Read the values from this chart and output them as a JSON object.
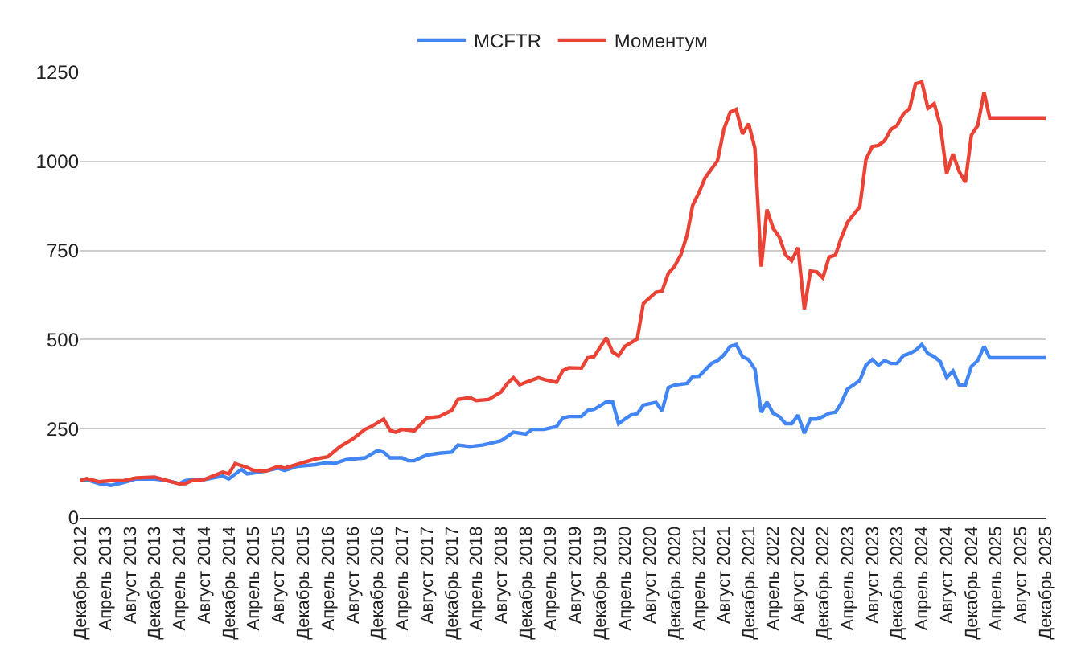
{
  "chart_data": {
    "type": "line",
    "xlim": [
      "2012-12",
      "2025-12"
    ],
    "xticks": [
      {
        "value": "2012-12",
        "label": "Декабрь 2012"
      },
      {
        "value": "2013-04",
        "label": "Апрель 2013"
      },
      {
        "value": "2013-08",
        "label": "Август 2013"
      },
      {
        "value": "2013-12",
        "label": "Декабрь 2013"
      },
      {
        "value": "2014-04",
        "label": "Апрель 2014"
      },
      {
        "value": "2014-08",
        "label": "Август 2014"
      },
      {
        "value": "2014-12",
        "label": "Декабрь 2014"
      },
      {
        "value": "2015-04",
        "label": "Апрель 2015"
      },
      {
        "value": "2015-08",
        "label": "Август 2015"
      },
      {
        "value": "2015-12",
        "label": "Декабрь 2015"
      },
      {
        "value": "2016-04",
        "label": "Апрель 2016"
      },
      {
        "value": "2016-08",
        "label": "Август 2016"
      },
      {
        "value": "2016-12",
        "label": "Декабрь 2016"
      },
      {
        "value": "2017-04",
        "label": "Апрель 2017"
      },
      {
        "value": "2017-08",
        "label": "Август 2017"
      },
      {
        "value": "2017-12",
        "label": "Декабрь 2017"
      },
      {
        "value": "2018-04",
        "label": "Апрель 2018"
      },
      {
        "value": "2018-08",
        "label": "Август 2018"
      },
      {
        "value": "2018-12",
        "label": "Декабрь 2018"
      },
      {
        "value": "2019-04",
        "label": "Апрель 2019"
      },
      {
        "value": "2019-08",
        "label": "Август 2019"
      },
      {
        "value": "2019-12",
        "label": "Декабрь 2019"
      },
      {
        "value": "2020-04",
        "label": "Апрель 2020"
      },
      {
        "value": "2020-08",
        "label": "Август 2020"
      },
      {
        "value": "2020-12",
        "label": "Декабрь 2020"
      },
      {
        "value": "2021-04",
        "label": "Апрель 2021"
      },
      {
        "value": "2021-08",
        "label": "Август 2021"
      },
      {
        "value": "2021-12",
        "label": "Декабрь 2021"
      },
      {
        "value": "2022-04",
        "label": "Апрель 2022"
      },
      {
        "value": "2022-08",
        "label": "Август 2022"
      },
      {
        "value": "2022-12",
        "label": "Декабрь 2022"
      },
      {
        "value": "2023-04",
        "label": "Апрель 2023"
      },
      {
        "value": "2023-08",
        "label": "Август 2023"
      },
      {
        "value": "2023-12",
        "label": "Декабрь 2023"
      },
      {
        "value": "2024-04",
        "label": "Апрель 2024"
      },
      {
        "value": "2024-08",
        "label": "Август 2024"
      },
      {
        "value": "2024-12",
        "label": "Декабрь 2024"
      },
      {
        "value": "2025-04",
        "label": "Апрель 2025"
      },
      {
        "value": "2025-08",
        "label": "Август 2025"
      },
      {
        "value": "2025-12",
        "label": "Декабрь 2025"
      }
    ],
    "ylim": [
      0,
      1250
    ],
    "yticks": [
      0,
      250,
      500,
      750,
      1000,
      1250
    ],
    "grid": "y",
    "legend": "top",
    "marker": "none",
    "line_style": "solid",
    "series": [
      {
        "name": "MCFTR",
        "color": "#4285f4",
        "x": [
          "2012-12",
          "2013-01",
          "2013-03",
          "2013-05",
          "2013-07",
          "2013-09",
          "2013-12",
          "2014-02",
          "2014-04",
          "2014-05",
          "2014-06",
          "2014-08",
          "2014-11",
          "2014-12",
          "2015-02",
          "2015-03",
          "2015-05",
          "2015-08",
          "2015-09",
          "2015-11",
          "2016-02",
          "2016-04",
          "2016-05",
          "2016-07",
          "2016-10",
          "2016-12",
          "2017-01",
          "2017-02",
          "2017-04",
          "2017-05",
          "2017-06",
          "2017-08",
          "2017-10",
          "2017-12",
          "2018-01",
          "2018-03",
          "2018-05",
          "2018-06",
          "2018-08",
          "2018-10",
          "2018-12",
          "2019-01",
          "2019-03",
          "2019-05",
          "2019-06",
          "2019-07",
          "2019-09",
          "2019-10",
          "2019-11",
          "2020-01",
          "2020-02",
          "2020-03",
          "2020-04",
          "2020-05",
          "2020-06",
          "2020-07",
          "2020-09",
          "2020-10",
          "2020-11",
          "2020-12",
          "2021-02",
          "2021-03",
          "2021-04",
          "2021-06",
          "2021-07",
          "2021-08",
          "2021-09",
          "2021-10",
          "2021-11",
          "2021-12",
          "2022-01",
          "2022-02",
          "2022-03",
          "2022-04",
          "2022-05",
          "2022-06",
          "2022-07",
          "2022-08",
          "2022-09",
          "2022-10",
          "2022-11",
          "2022-12",
          "2023-01",
          "2023-02",
          "2023-03",
          "2023-04",
          "2023-06",
          "2023-07",
          "2023-08",
          "2023-09",
          "2023-10",
          "2023-11",
          "2023-12",
          "2024-01",
          "2024-02",
          "2024-03",
          "2024-04",
          "2024-05",
          "2024-06",
          "2024-07",
          "2024-08",
          "2024-09",
          "2024-10",
          "2024-11",
          "2024-12",
          "2025-01",
          "2025-02",
          "2025-03",
          "2025-12"
        ],
        "values": [
          104,
          107,
          96,
          91,
          99,
          109,
          109,
          104,
          96,
          104,
          107,
          107,
          117,
          109,
          136,
          123,
          128,
          139,
          133,
          144,
          149,
          155,
          152,
          163,
          168,
          188,
          184,
          168,
          168,
          160,
          160,
          176,
          181,
          184,
          204,
          200,
          204,
          208,
          216,
          240,
          235,
          248,
          248,
          256,
          280,
          284,
          284,
          301,
          304,
          325,
          325,
          264,
          277,
          288,
          292,
          316,
          324,
          300,
          365,
          372,
          377,
          396,
          397,
          433,
          441,
          457,
          481,
          486,
          452,
          444,
          417,
          296,
          325,
          293,
          284,
          264,
          264,
          288,
          237,
          277,
          277,
          284,
          293,
          296,
          321,
          361,
          385,
          428,
          444,
          428,
          441,
          433,
          433,
          455,
          461,
          470,
          486,
          461,
          452,
          438,
          393,
          412,
          373,
          372,
          425,
          441,
          481,
          449,
          449
        ]
      },
      {
        "name": "Моментум",
        "color": "#ea4335",
        "x": [
          "2012-12",
          "2013-01",
          "2013-03",
          "2013-05",
          "2013-07",
          "2013-09",
          "2013-12",
          "2014-02",
          "2014-04",
          "2014-05",
          "2014-06",
          "2014-08",
          "2014-11",
          "2014-12",
          "2015-01",
          "2015-03",
          "2015-04",
          "2015-06",
          "2015-08",
          "2015-09",
          "2015-12",
          "2016-02",
          "2016-04",
          "2016-06",
          "2016-08",
          "2016-10",
          "2016-11",
          "2017-01",
          "2017-02",
          "2017-03",
          "2017-04",
          "2017-06",
          "2017-08",
          "2017-10",
          "2017-12",
          "2018-01",
          "2018-03",
          "2018-04",
          "2018-06",
          "2018-08",
          "2018-09",
          "2018-10",
          "2018-11",
          "2018-12",
          "2019-02",
          "2019-03",
          "2019-05",
          "2019-06",
          "2019-07",
          "2019-09",
          "2019-10",
          "2019-11",
          "2020-01",
          "2020-02",
          "2020-03",
          "2020-04",
          "2020-06",
          "2020-07",
          "2020-09",
          "2020-10",
          "2020-11",
          "2020-12",
          "2021-01",
          "2021-02",
          "2021-03",
          "2021-04",
          "2021-05",
          "2021-07",
          "2021-08",
          "2021-09",
          "2021-10",
          "2021-11",
          "2021-12",
          "2022-01",
          "2022-02",
          "2022-03",
          "2022-04",
          "2022-05",
          "2022-06",
          "2022-07",
          "2022-08",
          "2022-09",
          "2022-10",
          "2022-11",
          "2022-12",
          "2023-01",
          "2023-02",
          "2023-03",
          "2023-04",
          "2023-06",
          "2023-07",
          "2023-08",
          "2023-09",
          "2023-10",
          "2023-11",
          "2023-12",
          "2024-01",
          "2024-02",
          "2024-03",
          "2024-04",
          "2024-05",
          "2024-06",
          "2024-07",
          "2024-08",
          "2024-09",
          "2024-10",
          "2024-11",
          "2024-12",
          "2025-01",
          "2025-02",
          "2025-03",
          "2025-12"
        ],
        "values": [
          104,
          110,
          101,
          104,
          104,
          112,
          114,
          104,
          95,
          96,
          104,
          107,
          128,
          123,
          152,
          141,
          133,
          131,
          144,
          139,
          155,
          165,
          171,
          200,
          221,
          248,
          256,
          277,
          245,
          240,
          248,
          244,
          280,
          284,
          301,
          332,
          337,
          329,
          332,
          353,
          377,
          393,
          373,
          380,
          393,
          388,
          380,
          413,
          421,
          420,
          449,
          452,
          505,
          465,
          454,
          481,
          502,
          601,
          633,
          636,
          686,
          705,
          737,
          793,
          877,
          913,
          954,
          1002,
          1090,
          1138,
          1146,
          1077,
          1106,
          1037,
          705,
          865,
          812,
          788,
          737,
          721,
          758,
          585,
          692,
          690,
          673,
          732,
          737,
          785,
          829,
          873,
          1005,
          1042,
          1045,
          1058,
          1090,
          1101,
          1133,
          1149,
          1218,
          1223,
          1149,
          1162,
          1101,
          966,
          1021,
          973,
          941,
          1074,
          1101,
          1194,
          1122,
          1122
        ]
      }
    ]
  }
}
